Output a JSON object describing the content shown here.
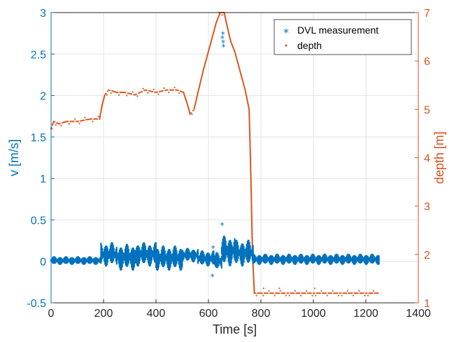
{
  "chart_data": {
    "type": "scatter",
    "title": "",
    "xlabel": "Time [s]",
    "ylabel_left": "v [m/s]",
    "ylabel_right": "depth [m]",
    "xlim": [
      0,
      1400
    ],
    "ylim_left": [
      -0.5,
      3
    ],
    "ylim_right": [
      1,
      7
    ],
    "x_ticks": [
      "0",
      "200",
      "400",
      "600",
      "800",
      "1000",
      "1200",
      "1400"
    ],
    "y_left_ticks": [
      "-0.5",
      "0",
      "0.5",
      "1",
      "1.5",
      "2",
      "2.5",
      "3"
    ],
    "y_right_ticks": [
      "1",
      "2",
      "3",
      "4",
      "5",
      "6",
      "7"
    ],
    "grid": true,
    "legend_position": "top-right",
    "colors": {
      "velocity": "#0072BD",
      "depth": "#D95319"
    },
    "series": [
      {
        "name": "DVL measurement",
        "axis": "left",
        "marker": "*",
        "segments": [
          {
            "x_start": 0,
            "x_end": 190,
            "low": -0.03,
            "high": 0.05
          },
          {
            "x_start": 190,
            "x_end": 250,
            "low": -0.05,
            "high": 0.22
          },
          {
            "x_start": 250,
            "x_end": 320,
            "low": -0.1,
            "high": 0.2
          },
          {
            "x_start": 320,
            "x_end": 400,
            "low": -0.05,
            "high": 0.22
          },
          {
            "x_start": 400,
            "x_end": 500,
            "low": -0.1,
            "high": 0.18
          },
          {
            "x_start": 500,
            "x_end": 560,
            "low": 0.0,
            "high": 0.15
          },
          {
            "x_start": 560,
            "x_end": 620,
            "low": -0.05,
            "high": 0.12
          },
          {
            "x_start": 620,
            "x_end": 650,
            "low": -0.1,
            "high": 0.1
          },
          {
            "x_start": 650,
            "x_end": 700,
            "low": -0.05,
            "high": 0.3
          },
          {
            "x_start": 700,
            "x_end": 770,
            "low": -0.05,
            "high": 0.25
          },
          {
            "x_start": 770,
            "x_end": 1250,
            "low": -0.03,
            "high": 0.08
          }
        ],
        "outliers": [
          {
            "x": 615,
            "y": -0.17
          },
          {
            "x": 618,
            "y": 0.17
          },
          {
            "x": 652,
            "y": 0.45
          },
          {
            "x": 655,
            "y": 2.75
          },
          {
            "x": 656,
            "y": 2.65
          },
          {
            "x": 657,
            "y": 2.6
          },
          {
            "x": 653,
            "y": 2.7
          }
        ]
      },
      {
        "name": "depth",
        "axis": "right",
        "marker": ".",
        "points": [
          [
            0,
            4.6
          ],
          [
            10,
            4.75
          ],
          [
            30,
            4.7
          ],
          [
            60,
            4.75
          ],
          [
            100,
            4.75
          ],
          [
            150,
            4.8
          ],
          [
            185,
            4.8
          ],
          [
            195,
            5.1
          ],
          [
            205,
            5.3
          ],
          [
            220,
            5.4
          ],
          [
            250,
            5.35
          ],
          [
            280,
            5.35
          ],
          [
            320,
            5.3
          ],
          [
            360,
            5.4
          ],
          [
            400,
            5.35
          ],
          [
            440,
            5.4
          ],
          [
            480,
            5.4
          ],
          [
            505,
            5.35
          ],
          [
            520,
            5.1
          ],
          [
            530,
            4.9
          ],
          [
            545,
            5.0
          ],
          [
            560,
            5.35
          ],
          [
            580,
            5.8
          ],
          [
            600,
            6.2
          ],
          [
            615,
            6.5
          ],
          [
            630,
            6.8
          ],
          [
            645,
            7.0
          ],
          [
            660,
            7.0
          ],
          [
            670,
            6.75
          ],
          [
            685,
            6.4
          ],
          [
            700,
            6.2
          ],
          [
            720,
            5.8
          ],
          [
            740,
            5.4
          ],
          [
            755,
            5.0
          ],
          [
            760,
            4.0
          ],
          [
            768,
            2.0
          ],
          [
            775,
            1.2
          ],
          [
            800,
            1.2
          ],
          [
            900,
            1.2
          ],
          [
            1000,
            1.2
          ],
          [
            1100,
            1.2
          ],
          [
            1200,
            1.2
          ],
          [
            1250,
            1.2
          ]
        ]
      }
    ]
  }
}
